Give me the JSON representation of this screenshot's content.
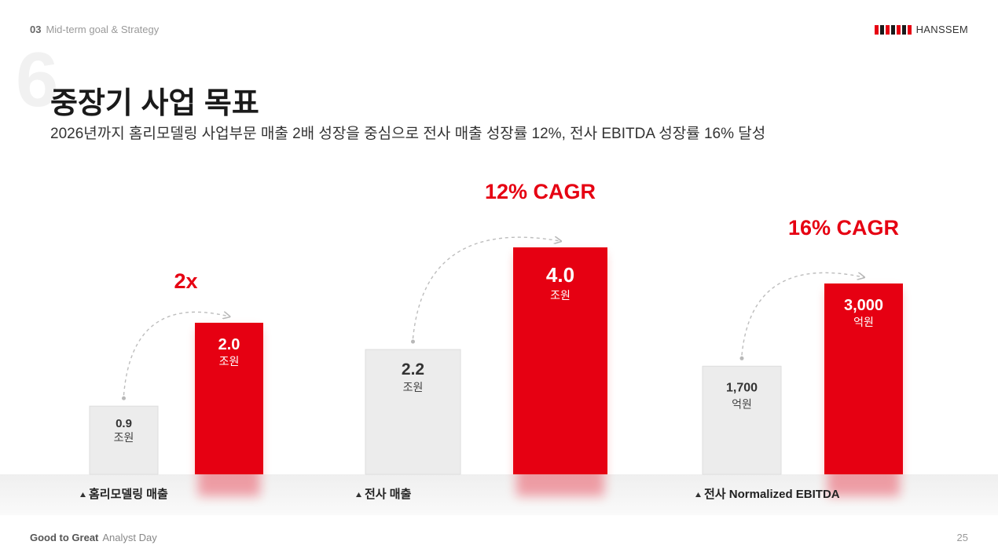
{
  "header": {
    "section_num": "03",
    "section_name": "Mid-term goal & Strategy",
    "logo_text": "HANSSEM",
    "logo_colors": [
      "#e60012",
      "#1a1a1a",
      "#e60012",
      "#1a1a1a",
      "#e60012",
      "#1a1a1a",
      "#e60012"
    ]
  },
  "slide": {
    "big_number": "6",
    "title": "중장기 사업 목표",
    "subtitle": "2026년까지 홈리모델링 사업부문 매출 2배 성장을 중심으로 전사 매출 성장률 12%, 전사 EBITDA 성장률 16% 달성"
  },
  "chart_data": [
    {
      "type": "bar",
      "group_label": "홈리모델링 매출",
      "growth_label": "2x",
      "bars": [
        {
          "value": 0.9,
          "label": "0.9",
          "unit": "조원",
          "color": "#ececec"
        },
        {
          "value": 2.0,
          "label": "2.0",
          "unit": "조원",
          "color": "#e60012"
        }
      ]
    },
    {
      "type": "bar",
      "group_label": "전사 매출",
      "growth_label": "12% CAGR",
      "bars": [
        {
          "value": 2.2,
          "label": "2.2",
          "unit": "조원",
          "color": "#ececec"
        },
        {
          "value": 4.0,
          "label": "4.0",
          "unit": "조원",
          "color": "#e60012"
        }
      ]
    },
    {
      "type": "bar",
      "group_label": "전사 Normalized EBITDA",
      "growth_label": "16% CAGR",
      "bars": [
        {
          "value": 1700,
          "label": "1,700",
          "unit": "억원",
          "color": "#ececec"
        },
        {
          "value": 3000,
          "label": "3,000",
          "unit": "억원",
          "color": "#e60012"
        }
      ]
    }
  ],
  "footer": {
    "brand": "Good to Great",
    "event": "Analyst Day",
    "page": "25"
  }
}
